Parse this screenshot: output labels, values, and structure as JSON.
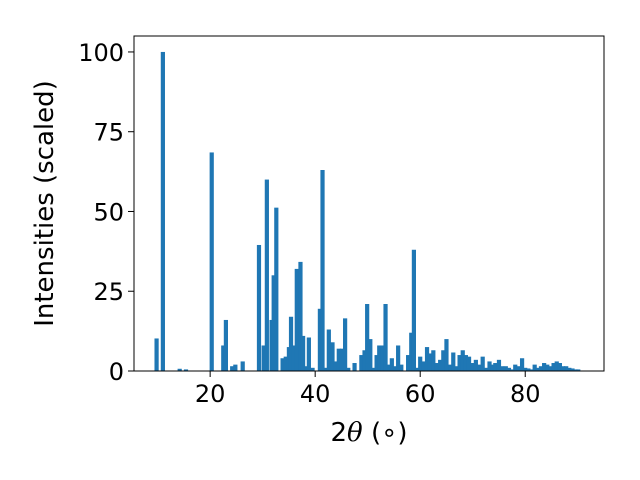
{
  "chart_data": {
    "type": "bar",
    "title": "",
    "xlabel": {
      "prefix": "2",
      "symbol": "θ",
      "suffix": " (∘)"
    },
    "ylabel": "Intensities (scaled)",
    "xlim": [
      5.5,
      95
    ],
    "ylim": [
      0,
      105
    ],
    "xticks": [
      20,
      40,
      60,
      80
    ],
    "yticks": [
      0,
      25,
      50,
      75,
      100
    ],
    "grid": false,
    "legend": "none",
    "bar_width": 0.8,
    "color": "#1f77b4",
    "x": [
      9.8,
      11.0,
      14.2,
      15.4,
      20.3,
      22.5,
      23.0,
      24.2,
      24.8,
      26.2,
      29.3,
      30.2,
      30.8,
      31.7,
      32.1,
      32.6,
      33.8,
      34.4,
      35.0,
      35.4,
      35.9,
      36.5,
      37.2,
      37.7,
      38.3,
      38.8,
      39.5,
      40.9,
      41.4,
      42.0,
      42.6,
      43.3,
      43.9,
      44.5,
      45.1,
      45.7,
      46.3,
      47.5,
      48.8,
      49.4,
      49.9,
      50.5,
      51.2,
      51.7,
      52.2,
      52.8,
      53.4,
      54.1,
      54.6,
      55.3,
      55.8,
      56.4,
      57.7,
      58.3,
      58.8,
      59.4,
      60.0,
      60.6,
      61.3,
      61.8,
      62.5,
      63.1,
      63.8,
      64.4,
      65.0,
      65.7,
      66.3,
      66.9,
      67.5,
      68.1,
      68.7,
      69.3,
      69.9,
      70.6,
      71.3,
      71.9,
      72.6,
      73.2,
      73.8,
      74.3,
      75.0,
      75.6,
      76.3,
      76.9,
      77.5,
      78.1,
      78.8,
      79.4,
      80.0,
      80.6,
      81.2,
      81.8,
      82.4,
      83.0,
      83.6,
      84.2,
      84.8,
      85.4,
      86.0,
      86.6,
      87.2,
      87.8,
      88.4,
      89.0,
      89.6,
      90.1
    ],
    "values": [
      10.2,
      100.0,
      0.7,
      0.5,
      68.5,
      8.0,
      16.0,
      1.5,
      2.0,
      3.0,
      39.5,
      8.0,
      60.0,
      16.0,
      30.0,
      51.2,
      4.0,
      4.5,
      7.5,
      17.0,
      8.0,
      32.0,
      34.2,
      11.0,
      1.5,
      10.5,
      1.0,
      19.5,
      63.0,
      1.0,
      13.0,
      9.0,
      3.0,
      7.0,
      7.0,
      16.5,
      1.0,
      2.5,
      5.0,
      6.5,
      21.0,
      10.0,
      1.0,
      5.0,
      8.0,
      8.0,
      21.0,
      2.0,
      4.0,
      1.5,
      8.0,
      2.0,
      5.0,
      12.0,
      38.0,
      1.0,
      4.5,
      3.0,
      7.5,
      5.5,
      6.5,
      2.5,
      3.5,
      6.5,
      10.0,
      2.0,
      5.8,
      1.5,
      5.0,
      6.5,
      5.0,
      4.5,
      2.5,
      3.5,
      2.0,
      4.5,
      1.0,
      3.0,
      2.0,
      2.5,
      3.5,
      1.5,
      1.5,
      1.0,
      0.5,
      2.0,
      1.5,
      4.0,
      1.0,
      0.8,
      0.5,
      2.0,
      1.0,
      1.5,
      2.5,
      2.0,
      1.5,
      2.5,
      3.0,
      2.5,
      1.5,
      1.5,
      1.0,
      0.8,
      0.5,
      0.5
    ]
  }
}
